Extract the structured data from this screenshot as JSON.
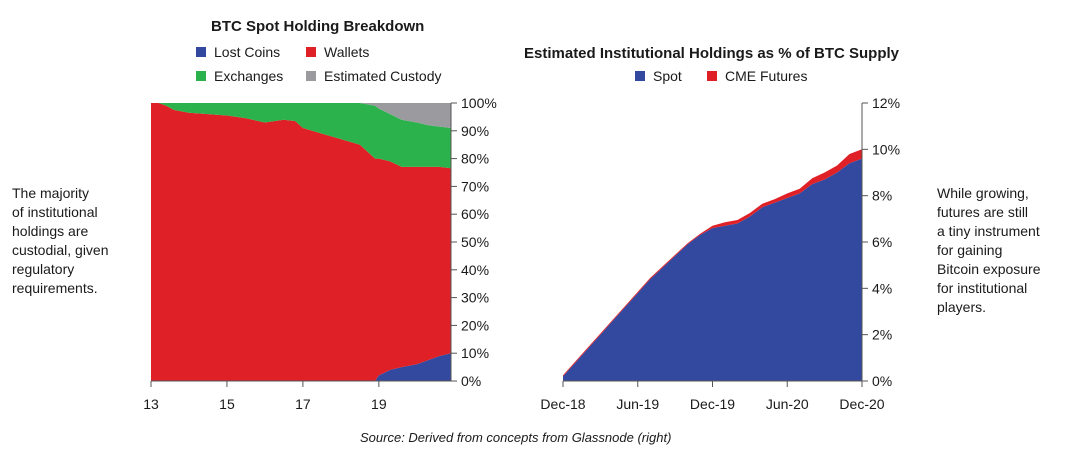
{
  "left_note": "The majority\nof institutional\nholdings are\ncustodial, given\nregulatory\nrequirements.",
  "right_note": "While growing,\nfutures are still\na tiny instrument\nfor gaining\nBitcoin exposure\nfor institutional\nplayers.",
  "source": "Source: Derived from concepts from Glassnode (right)",
  "colors": {
    "lost_coins": "#3349a0",
    "wallets": "#e02027",
    "exchanges": "#2bb24c",
    "custody": "#9b9b9f",
    "spot": "#3349a0",
    "cme": "#e02027"
  },
  "chart_data": [
    {
      "type": "area",
      "stacked": true,
      "normalized": true,
      "title": "BTC Spot Holding Breakdown",
      "legend": [
        "Lost Coins",
        "Wallets",
        "Exchanges",
        "Estimated Custody"
      ],
      "legend_position": "top",
      "x_ticks": [
        "13",
        "15",
        "17",
        "19"
      ],
      "y_ticks": [
        "0%",
        "10%",
        "20%",
        "30%",
        "40%",
        "50%",
        "60%",
        "70%",
        "80%",
        "90%",
        "100%"
      ],
      "y_axis_side": "right",
      "xlim": [
        2013,
        2020.9
      ],
      "ylim": [
        0,
        100
      ],
      "x": [
        2013,
        2013.2,
        2013.4,
        2013.6,
        2014,
        2014.5,
        2015,
        2015.5,
        2016,
        2016.5,
        2016.8,
        2017,
        2017.5,
        2018,
        2018.5,
        2018.9,
        2019,
        2019.3,
        2019.6,
        2020,
        2020.3,
        2020.6,
        2020.9
      ],
      "series": [
        {
          "name": "Lost Coins",
          "values": [
            0,
            0,
            0,
            0,
            0,
            0,
            0,
            0,
            0,
            0,
            0,
            0,
            0,
            0,
            0,
            0,
            2,
            4,
            5,
            6,
            7.5,
            9,
            10
          ]
        },
        {
          "name": "Wallets",
          "values": [
            100,
            100,
            99,
            97.5,
            96.5,
            96,
            95.5,
            94.5,
            93,
            94,
            93.5,
            91,
            89,
            87,
            85,
            80,
            78,
            75,
            72,
            71,
            69.5,
            68,
            66.5
          ]
        },
        {
          "name": "Exchanges",
          "values": [
            0,
            0,
            1,
            2.5,
            3.5,
            4,
            4.5,
            5.5,
            7,
            6,
            6.5,
            9,
            11,
            13,
            15,
            19,
            18,
            17,
            17,
            16,
            15,
            14.5,
            14.5
          ]
        },
        {
          "name": "Estimated Custody",
          "values": [
            0,
            0,
            0,
            0,
            0,
            0,
            0,
            0,
            0,
            0,
            0,
            0,
            0,
            0,
            0,
            1,
            2,
            4,
            6,
            7,
            8,
            8.5,
            9
          ]
        }
      ]
    },
    {
      "type": "area",
      "stacked": true,
      "title": "Estimated Institutional Holdings as % of BTC Supply",
      "legend": [
        "Spot",
        "CME Futures"
      ],
      "legend_position": "top",
      "x_ticks": [
        "Dec-18",
        "Jun-19",
        "Dec-19",
        "Jun-20",
        "Dec-20"
      ],
      "y_ticks": [
        "0%",
        "2%",
        "4%",
        "6%",
        "8%",
        "10%",
        "12%"
      ],
      "y_axis_side": "right",
      "xlim": [
        "2018-12",
        "2020-12"
      ],
      "ylim": [
        0,
        12
      ],
      "x": [
        "2018-12",
        "2019-01",
        "2019-02",
        "2019-03",
        "2019-04",
        "2019-05",
        "2019-06",
        "2019-07",
        "2019-08",
        "2019-09",
        "2019-10",
        "2019-11",
        "2019-12",
        "2020-01",
        "2020-02",
        "2020-03",
        "2020-04",
        "2020-05",
        "2020-06",
        "2020-07",
        "2020-08",
        "2020-09",
        "2020-10",
        "2020-11",
        "2020-12"
      ],
      "series": [
        {
          "name": "Spot",
          "values": [
            0.2,
            0.8,
            1.4,
            2.0,
            2.6,
            3.2,
            3.8,
            4.4,
            4.9,
            5.4,
            5.9,
            6.3,
            6.6,
            6.7,
            6.8,
            7.1,
            7.5,
            7.7,
            7.9,
            8.1,
            8.5,
            8.7,
            9.0,
            9.4,
            9.6
          ]
        },
        {
          "name": "CME Futures",
          "values": [
            0.05,
            0.05,
            0.05,
            0.05,
            0.05,
            0.05,
            0.05,
            0.05,
            0.05,
            0.05,
            0.05,
            0.05,
            0.1,
            0.15,
            0.15,
            0.15,
            0.15,
            0.15,
            0.2,
            0.2,
            0.25,
            0.3,
            0.3,
            0.4,
            0.4
          ]
        }
      ]
    }
  ]
}
